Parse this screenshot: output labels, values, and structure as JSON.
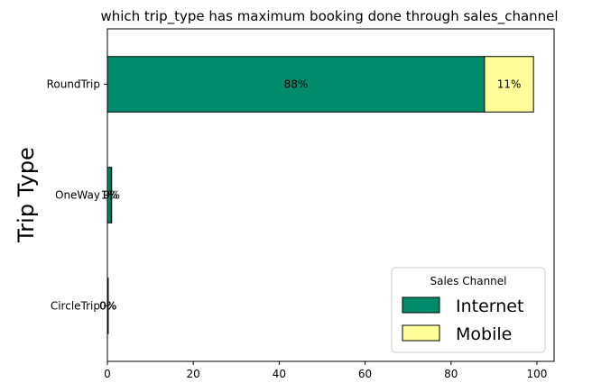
{
  "chart_data": {
    "type": "bar",
    "orientation": "horizontal",
    "stacked": true,
    "title": "which trip_type has maximum booking done through sales_channel",
    "xlabel": "",
    "ylabel": "Trip Type",
    "categories": [
      "RoundTrip",
      "OneWay",
      "CircleTrip"
    ],
    "xlim": [
      0,
      104
    ],
    "xticks": [
      0,
      20,
      40,
      60,
      80,
      100
    ],
    "series": [
      {
        "name": "Internet",
        "color": "#008b6b",
        "values": [
          87.8,
          0.9,
          0.2
        ],
        "labels": [
          "88%",
          "1%",
          "0%"
        ]
      },
      {
        "name": "Mobile",
        "color": "#ffff99",
        "values": [
          11.4,
          0.1,
          0.0
        ],
        "labels": [
          "11%",
          "0%",
          "0%"
        ]
      }
    ],
    "legend": {
      "title": "Sales Channel",
      "placement": "lower-right"
    },
    "grid": false
  }
}
